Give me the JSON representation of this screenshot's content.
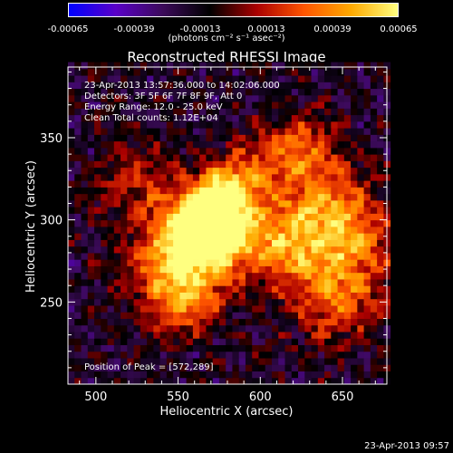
{
  "colorbar": {
    "ticks": [
      "-0.00065",
      "-0.00039",
      "-0.00013",
      "0.00013",
      "0.00039",
      "0.00065"
    ],
    "units": "(photons cm⁻² s⁻¹ asec⁻²)"
  },
  "chart_data": {
    "type": "heatmap",
    "title": "Reconstructed RHESSI Image",
    "xlabel": "Heliocentric X (arcsec)",
    "ylabel": "Heliocentric Y (arcsec)",
    "xlim": [
      483,
      677
    ],
    "ylim": [
      200,
      393
    ],
    "xticks": [
      500,
      550,
      600,
      650
    ],
    "yticks": [
      250,
      300,
      350
    ],
    "annotations": [
      "23-Apr-2013 13:57:36.000 to 14:02:06.000",
      "Detectors: 3F 5F 6F 7F 8F 9F, Att 0",
      "Energy Range: 12.0 - 25.0 keV",
      "Clean     Total counts: 1.12E+04"
    ],
    "peak_label": "Position of Peak = [572,289]",
    "peak": [
      572,
      289
    ],
    "color_range": [
      -0.00065,
      0.00065
    ],
    "colormap": [
      "#0000ff",
      "#5a00c8",
      "#3c0a5a",
      "#000000",
      "#aa0000",
      "#ff5500",
      "#ffaa00",
      "#ffff80"
    ]
  },
  "footer": "23-Apr-2013 09:57"
}
